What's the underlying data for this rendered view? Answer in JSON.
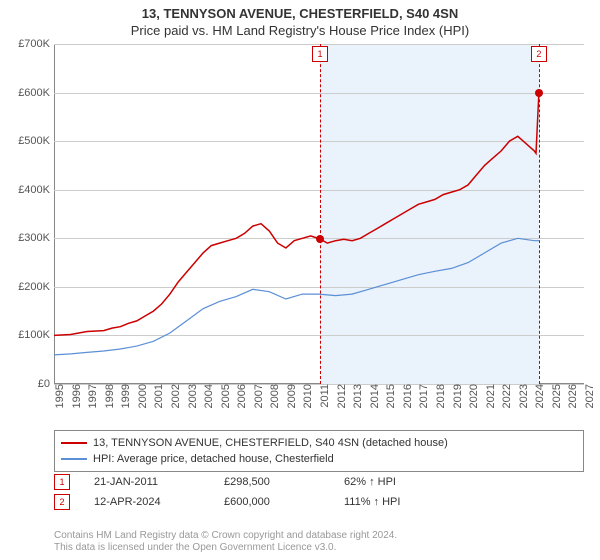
{
  "title": "13, TENNYSON AVENUE, CHESTERFIELD, S40 4SN",
  "subtitle": "Price paid vs. HM Land Registry's House Price Index (HPI)",
  "chart": {
    "type": "line",
    "background_color": "#ffffff",
    "grid_color": "#cccccc",
    "shaded_color": "#eaf2fb",
    "ylim": [
      0,
      700000
    ],
    "ytick_step": 100000,
    "y_labels": [
      "£0",
      "£100K",
      "£200K",
      "£300K",
      "£400K",
      "£500K",
      "£600K",
      "£700K"
    ],
    "xlim": [
      1995,
      2027
    ],
    "x_labels": [
      "1995",
      "1996",
      "1997",
      "1998",
      "1999",
      "2000",
      "2001",
      "2002",
      "2003",
      "2004",
      "2005",
      "2006",
      "2007",
      "2008",
      "2009",
      "2010",
      "2011",
      "2012",
      "2013",
      "2014",
      "2015",
      "2016",
      "2017",
      "2018",
      "2019",
      "2020",
      "2021",
      "2022",
      "2023",
      "2024",
      "2025",
      "2026",
      "2027"
    ],
    "label_fontsize": 11,
    "series": [
      {
        "name": "13, TENNYSON AVENUE, CHESTERFIELD, S40 4SN (detached house)",
        "color": "#cc0000",
        "line_width": 1.5,
        "points": [
          [
            1995,
            100000
          ],
          [
            1996,
            102000
          ],
          [
            1997,
            108000
          ],
          [
            1998,
            110000
          ],
          [
            1998.5,
            115000
          ],
          [
            1999,
            118000
          ],
          [
            1999.5,
            125000
          ],
          [
            2000,
            130000
          ],
          [
            2000.5,
            140000
          ],
          [
            2001,
            150000
          ],
          [
            2001.5,
            165000
          ],
          [
            2002,
            185000
          ],
          [
            2002.5,
            210000
          ],
          [
            2003,
            230000
          ],
          [
            2003.5,
            250000
          ],
          [
            2004,
            270000
          ],
          [
            2004.5,
            285000
          ],
          [
            2005,
            290000
          ],
          [
            2005.5,
            295000
          ],
          [
            2006,
            300000
          ],
          [
            2006.5,
            310000
          ],
          [
            2007,
            325000
          ],
          [
            2007.5,
            330000
          ],
          [
            2008,
            315000
          ],
          [
            2008.5,
            290000
          ],
          [
            2009,
            280000
          ],
          [
            2009.5,
            295000
          ],
          [
            2010,
            300000
          ],
          [
            2010.5,
            305000
          ],
          [
            2011.06,
            298500
          ],
          [
            2011.5,
            290000
          ],
          [
            2012,
            295000
          ],
          [
            2012.5,
            298000
          ],
          [
            2013,
            295000
          ],
          [
            2013.5,
            300000
          ],
          [
            2014,
            310000
          ],
          [
            2014.5,
            320000
          ],
          [
            2015,
            330000
          ],
          [
            2015.5,
            340000
          ],
          [
            2016,
            350000
          ],
          [
            2016.5,
            360000
          ],
          [
            2017,
            370000
          ],
          [
            2017.5,
            375000
          ],
          [
            2018,
            380000
          ],
          [
            2018.5,
            390000
          ],
          [
            2019,
            395000
          ],
          [
            2019.5,
            400000
          ],
          [
            2020,
            410000
          ],
          [
            2020.5,
            430000
          ],
          [
            2021,
            450000
          ],
          [
            2021.5,
            465000
          ],
          [
            2022,
            480000
          ],
          [
            2022.5,
            500000
          ],
          [
            2023,
            510000
          ],
          [
            2023.5,
            495000
          ],
          [
            2024,
            480000
          ],
          [
            2024.1,
            475000
          ],
          [
            2024.28,
            600000
          ]
        ]
      },
      {
        "name": "HPI: Average price, detached house, Chesterfield",
        "color": "#5b8fd6",
        "line_width": 1.2,
        "points": [
          [
            1995,
            60000
          ],
          [
            1996,
            62000
          ],
          [
            1997,
            65000
          ],
          [
            1998,
            68000
          ],
          [
            1999,
            72000
          ],
          [
            2000,
            78000
          ],
          [
            2001,
            88000
          ],
          [
            2002,
            105000
          ],
          [
            2003,
            130000
          ],
          [
            2004,
            155000
          ],
          [
            2005,
            170000
          ],
          [
            2006,
            180000
          ],
          [
            2007,
            195000
          ],
          [
            2008,
            190000
          ],
          [
            2009,
            175000
          ],
          [
            2010,
            185000
          ],
          [
            2011,
            185000
          ],
          [
            2012,
            182000
          ],
          [
            2013,
            185000
          ],
          [
            2014,
            195000
          ],
          [
            2015,
            205000
          ],
          [
            2016,
            215000
          ],
          [
            2017,
            225000
          ],
          [
            2018,
            232000
          ],
          [
            2019,
            238000
          ],
          [
            2020,
            250000
          ],
          [
            2021,
            270000
          ],
          [
            2022,
            290000
          ],
          [
            2023,
            300000
          ],
          [
            2024,
            295000
          ],
          [
            2024.3,
            295000
          ]
        ]
      }
    ],
    "shaded_range": [
      2011.06,
      2024.28
    ],
    "markers": [
      {
        "n": "1",
        "x": 2011.06,
        "y": 298500,
        "color": "#cc0000"
      },
      {
        "n": "2",
        "x": 2024.28,
        "y": 600000,
        "color": "#cc0000"
      }
    ]
  },
  "legend": {
    "series1": "13, TENNYSON AVENUE, CHESTERFIELD, S40 4SN (detached house)",
    "series2": "HPI: Average price, detached house, Chesterfield"
  },
  "sales": [
    {
      "n": "1",
      "date": "21-JAN-2011",
      "price": "£298,500",
      "hpi": "62% ↑ HPI",
      "color": "#cc0000"
    },
    {
      "n": "2",
      "date": "12-APR-2024",
      "price": "£600,000",
      "hpi": "111% ↑ HPI",
      "color": "#cc0000"
    }
  ],
  "footer": {
    "line1": "Contains HM Land Registry data © Crown copyright and database right 2024.",
    "line2": "This data is licensed under the Open Government Licence v3.0."
  }
}
